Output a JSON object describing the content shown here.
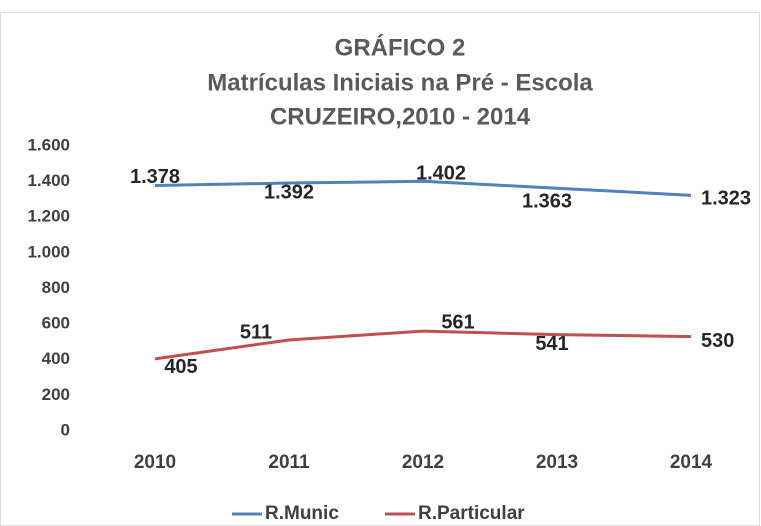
{
  "chart_data": {
    "type": "line",
    "title": "GRÁFICO 2",
    "subtitle": "Matrículas Iniciais na Pré - Escola",
    "subtitle2": "CRUZEIRO,2010 - 2014",
    "categories": [
      "2010",
      "2011",
      "2012",
      "2013",
      "2014"
    ],
    "series": [
      {
        "name": "R.Munic",
        "color": "#4f81bd",
        "values": [
          1378,
          1392,
          1402,
          1363,
          1323
        ],
        "value_labels": [
          "1.378",
          "1.392",
          "1.402",
          "1.363",
          "1.323"
        ]
      },
      {
        "name": "R.Particular",
        "color": "#c0504d",
        "values": [
          405,
          511,
          561,
          541,
          530
        ]
      }
    ],
    "ylim": [
      0,
      1600
    ],
    "yticks": [
      0,
      200,
      400,
      600,
      800,
      {
        "value": 1000,
        "label": "1.000"
      },
      {
        "value": 1200,
        "label": "1.200"
      },
      {
        "value": 1400,
        "label": "1.400"
      },
      {
        "value": 1600,
        "label": "1.600"
      }
    ],
    "grid": false,
    "legend": "bottom"
  }
}
